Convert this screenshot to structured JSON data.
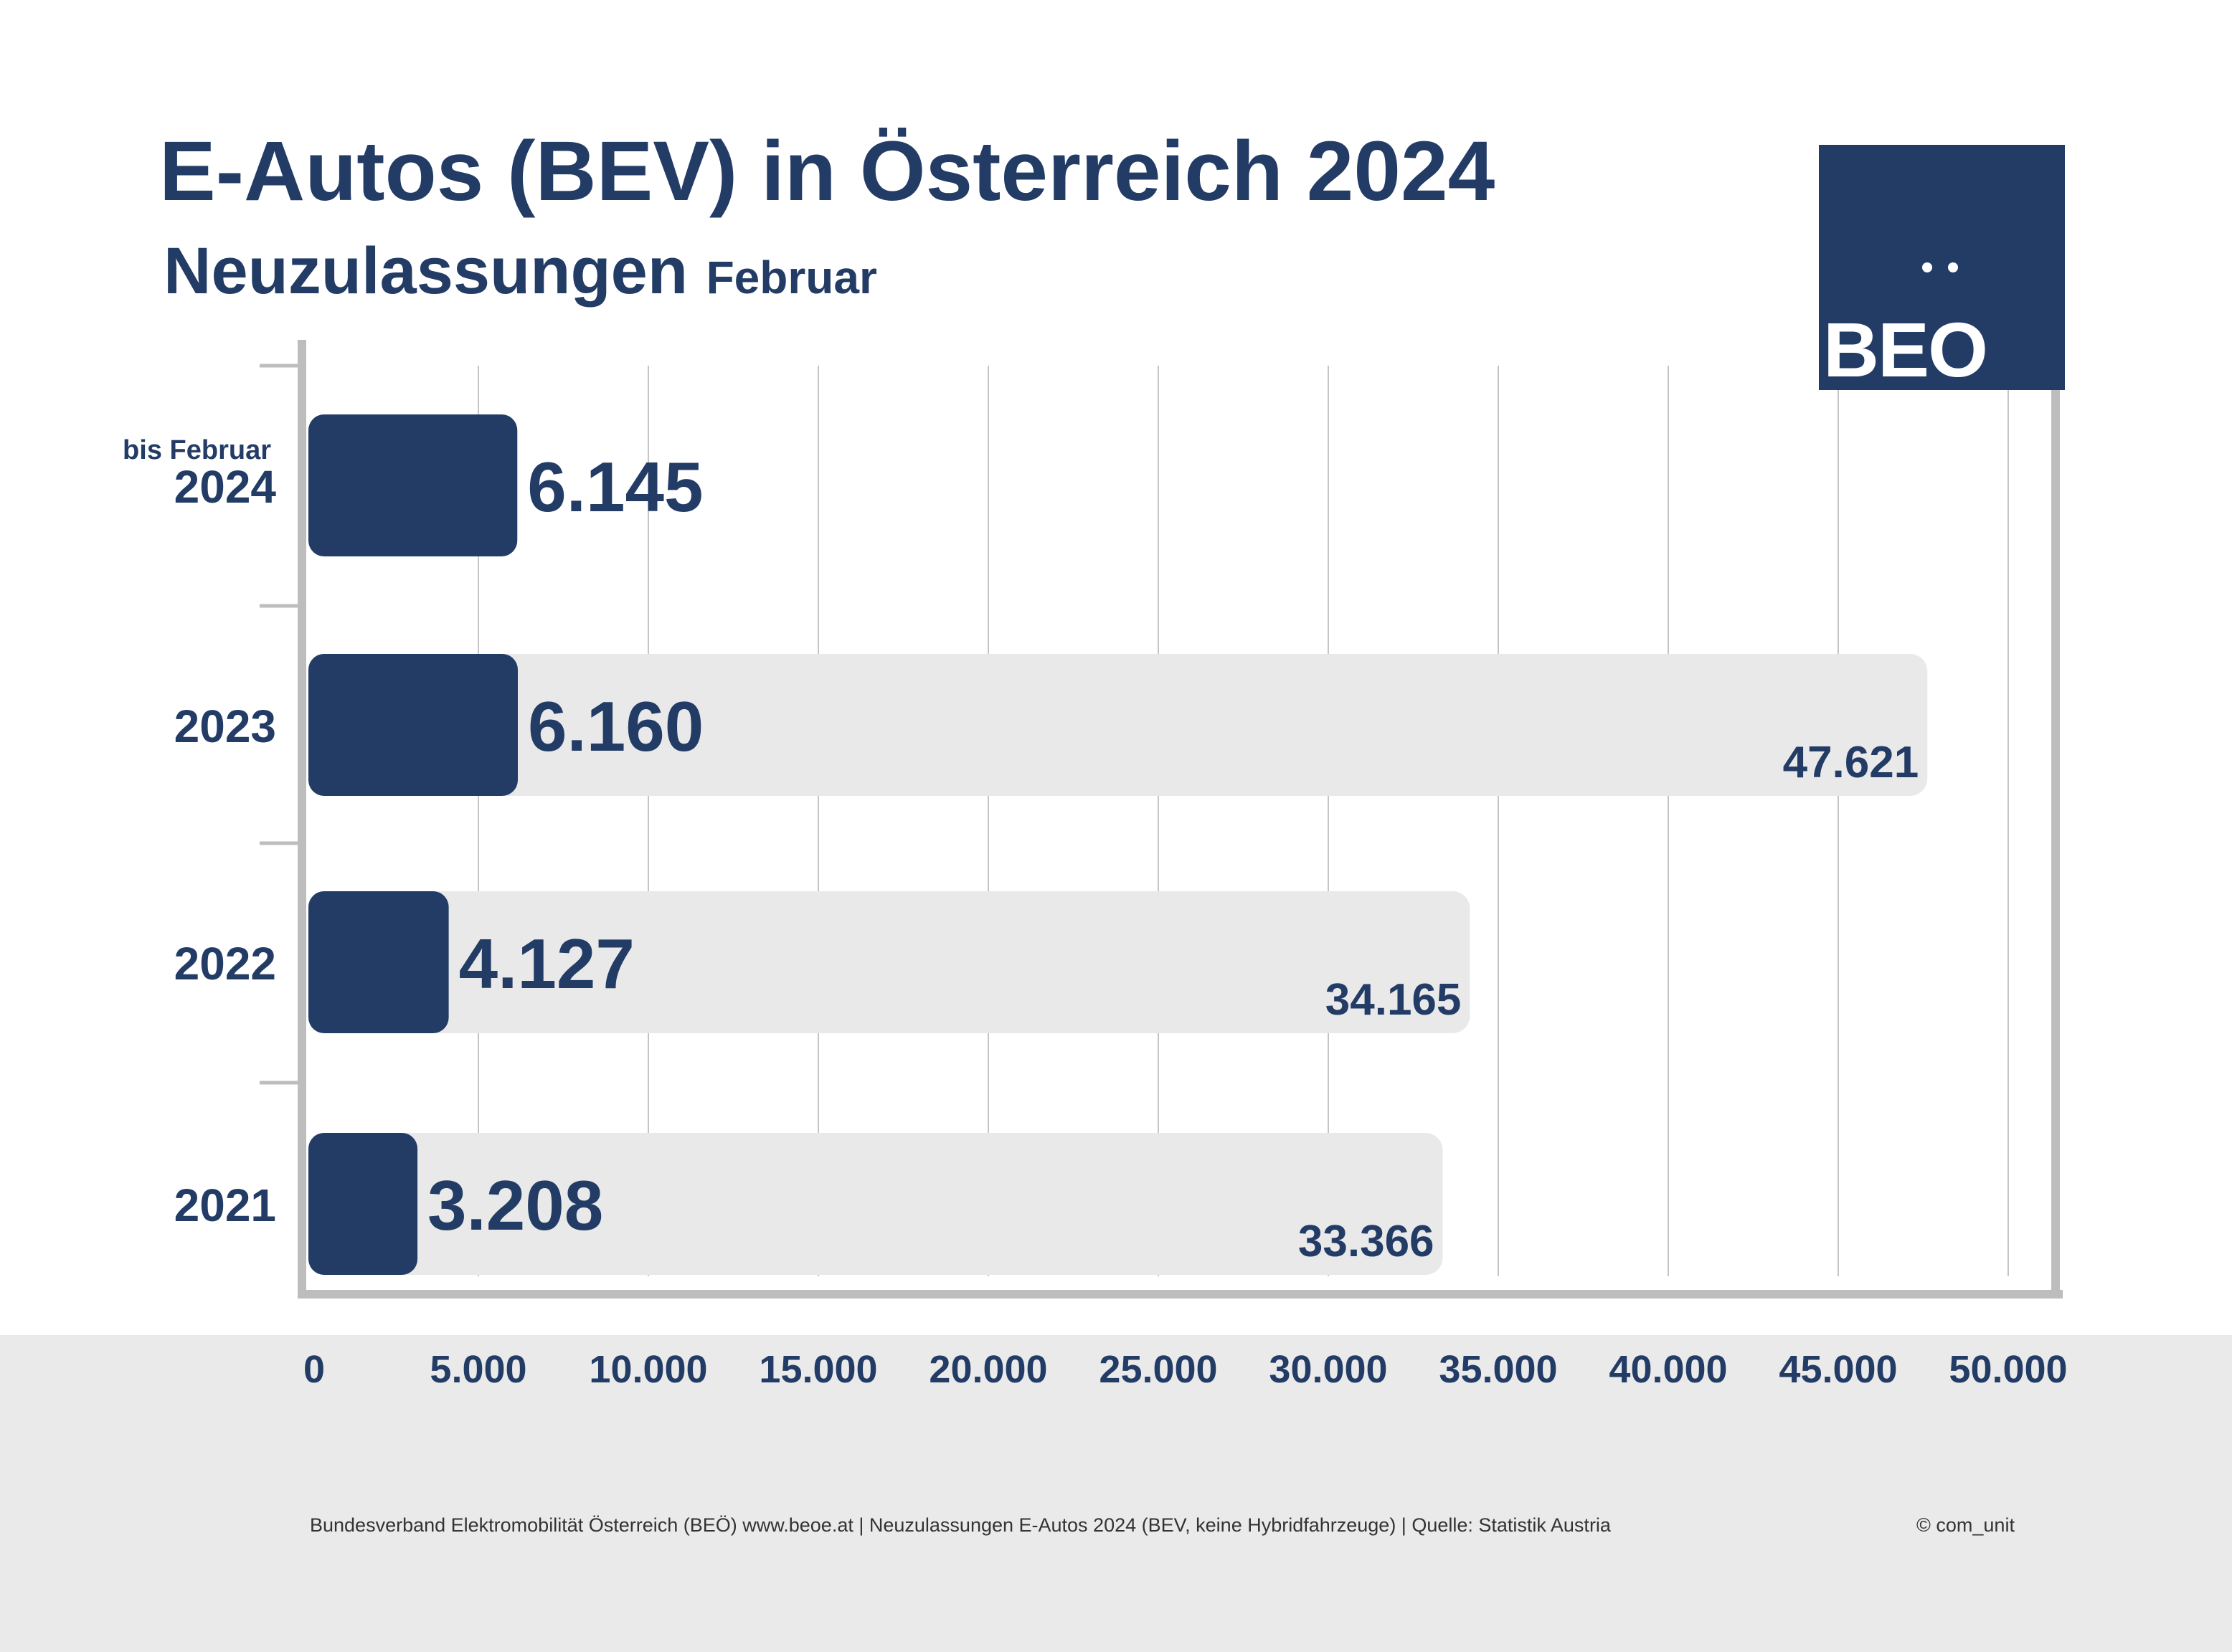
{
  "header": {
    "title": "E-Autos (BEV) in Österreich 2024",
    "subtitle_main": "Neuzulassungen",
    "subtitle_small": "Februar"
  },
  "logo": {
    "text": "BEO"
  },
  "footer": {
    "source": "Bundesverband Elektromobilität Österreich (BEÖ) www.beoe.at | Neuzulassungen E-Autos 2024 (BEV, keine Hybridfahrzeuge) | Quelle: Statistik Austria",
    "copyright": "© com_unit"
  },
  "chart_data": {
    "type": "bar",
    "orientation": "horizontal",
    "categories": [
      "2024",
      "2023",
      "2022",
      "2021"
    ],
    "category_notes": [
      "bis Februar",
      "",
      "",
      ""
    ],
    "series": [
      {
        "values": [
          6145,
          6160,
          4127,
          3208
        ],
        "value_labels": [
          "6.145",
          "6.160",
          "4.127",
          "3.208"
        ],
        "color": "#233c66"
      },
      {
        "values": [
          null,
          47621,
          34165,
          33366
        ],
        "value_labels": [
          "",
          "47.621",
          "34.165",
          "33.366"
        ],
        "color": "#e9e9e9"
      }
    ],
    "xlim": [
      0,
      50000
    ],
    "x_ticks": [
      0,
      5000,
      10000,
      15000,
      20000,
      25000,
      30000,
      35000,
      40000,
      45000,
      50000
    ],
    "x_tick_labels": [
      "0",
      "5.000",
      "10.000",
      "15.000",
      "20.000",
      "25.000",
      "30.000",
      "35.000",
      "40.000",
      "45.000",
      "50.000"
    ],
    "grid": true
  }
}
